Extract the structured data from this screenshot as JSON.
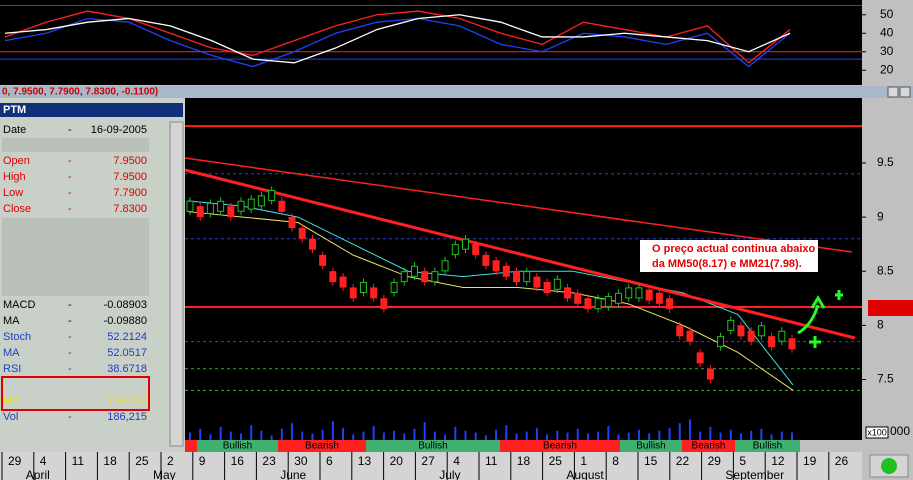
{
  "header": {
    "quote": "0, 7.9500, 7.7900, 7.8300, -0.1100)"
  },
  "info": {
    "title": "PTM",
    "sep": "-",
    "rows": [
      [
        "Date",
        "16-09-2005"
      ],
      [
        "Open",
        "7.9500"
      ],
      [
        "High",
        "7.9500"
      ],
      [
        "Low",
        "7.7900"
      ],
      [
        "Close",
        "7.8300"
      ],
      [
        "MACD",
        "-0.08903"
      ],
      [
        "MA",
        "-0.09880"
      ],
      [
        "Stoch",
        "52.2124"
      ],
      [
        "MA",
        "52.0517"
      ],
      [
        "RSI",
        "38.6718"
      ],
      [
        "MA",
        "7.98353"
      ],
      [
        "Vol",
        "186,215"
      ]
    ]
  },
  "indicator": {
    "ylim": [
      12,
      58
    ],
    "yticks": [
      50,
      40,
      30,
      20
    ],
    "blue_lines": [
      55,
      26
    ],
    "red_lines": [
      30
    ],
    "series": [
      {
        "color": "#ff2020",
        "values": [
          38,
          46,
          52,
          48,
          40,
          32,
          28,
          36,
          44,
          50,
          52,
          48,
          40,
          34,
          46,
          42,
          38,
          44,
          24,
          42
        ]
      },
      {
        "color": "#2040ff",
        "values": [
          36,
          40,
          48,
          46,
          36,
          28,
          22,
          30,
          40,
          46,
          48,
          44,
          34,
          30,
          40,
          38,
          34,
          40,
          22,
          40
        ]
      },
      {
        "color": "#ffffff",
        "values": [
          40,
          42,
          46,
          48,
          44,
          36,
          26,
          24,
          32,
          42,
          48,
          50,
          46,
          38,
          38,
          40,
          38,
          36,
          30,
          40
        ]
      }
    ]
  },
  "chart_data": {
    "type": "candlestick",
    "ylim": [
      7.2,
      10.1
    ],
    "yticks": [
      9.5,
      9.0,
      8.5,
      8.0,
      7.5
    ],
    "closes": [
      9.1,
      9.05,
      9.08,
      9.1,
      9.05,
      9.1,
      9.12,
      9.15,
      9.2,
      9.1,
      8.95,
      8.85,
      8.75,
      8.6,
      8.45,
      8.4,
      8.3,
      8.35,
      8.3,
      8.2,
      8.35,
      8.45,
      8.5,
      8.45,
      8.45,
      8.55,
      8.7,
      8.75,
      8.7,
      8.6,
      8.55,
      8.5,
      8.45,
      8.45,
      8.4,
      8.35,
      8.38,
      8.3,
      8.25,
      8.2,
      8.2,
      8.22,
      8.25,
      8.3,
      8.3,
      8.28,
      8.25,
      8.2,
      7.95,
      7.9,
      7.7,
      7.55,
      7.85,
      8.0,
      7.95,
      7.9,
      7.95,
      7.85,
      7.9,
      7.83
    ],
    "ma21": [
      9.15,
      9.1,
      9.0,
      8.75,
      8.5,
      8.45,
      8.5,
      8.5,
      8.4,
      8.3,
      8.1,
      7.45
    ],
    "ma50": [
      9.05,
      9.0,
      8.95,
      8.65,
      8.45,
      8.35,
      8.35,
      8.3,
      8.2,
      8.0,
      7.75,
      7.4
    ],
    "red_lines": [
      9.84,
      8.17
    ],
    "blue_lines": [
      9.4,
      8.8,
      7.85
    ],
    "green_lines": [
      7.6,
      7.4
    ],
    "annotation": [
      "O preço actual continua abaixo",
      "da MM50(8.17) e MM21(7.98)."
    ],
    "volume_ylim": [
      0,
      30
    ],
    "volume": [
      8,
      12,
      6,
      14,
      9,
      7,
      16,
      10,
      5,
      12,
      18,
      9,
      7,
      11,
      20,
      13,
      6,
      9,
      15,
      8,
      10,
      7,
      12,
      19,
      9,
      6,
      14,
      10,
      8,
      5,
      11,
      16,
      7,
      9,
      13,
      6,
      10,
      8,
      12,
      7,
      9,
      15,
      6,
      8,
      11,
      7,
      10,
      13,
      18,
      22,
      9,
      14,
      8,
      11,
      7,
      10,
      12,
      6,
      9,
      8
    ],
    "volume_unit": "x100",
    "volume_tick": "000",
    "signals": [
      null,
      "Bullish",
      "Bearish",
      "Bullish",
      "Bearish",
      "Bullish",
      "Bearish",
      "Bullish"
    ],
    "dates": [
      "29",
      "4",
      "11",
      "18",
      "25",
      "2",
      "9",
      "16",
      "23",
      "30",
      "6",
      "13",
      "20",
      "27",
      "4",
      "11",
      "18",
      "25",
      "1",
      "8",
      "15",
      "22",
      "29",
      "5",
      "12",
      "19",
      "26"
    ],
    "months": [
      "April",
      "May",
      "June",
      "July",
      "August",
      "September"
    ]
  }
}
